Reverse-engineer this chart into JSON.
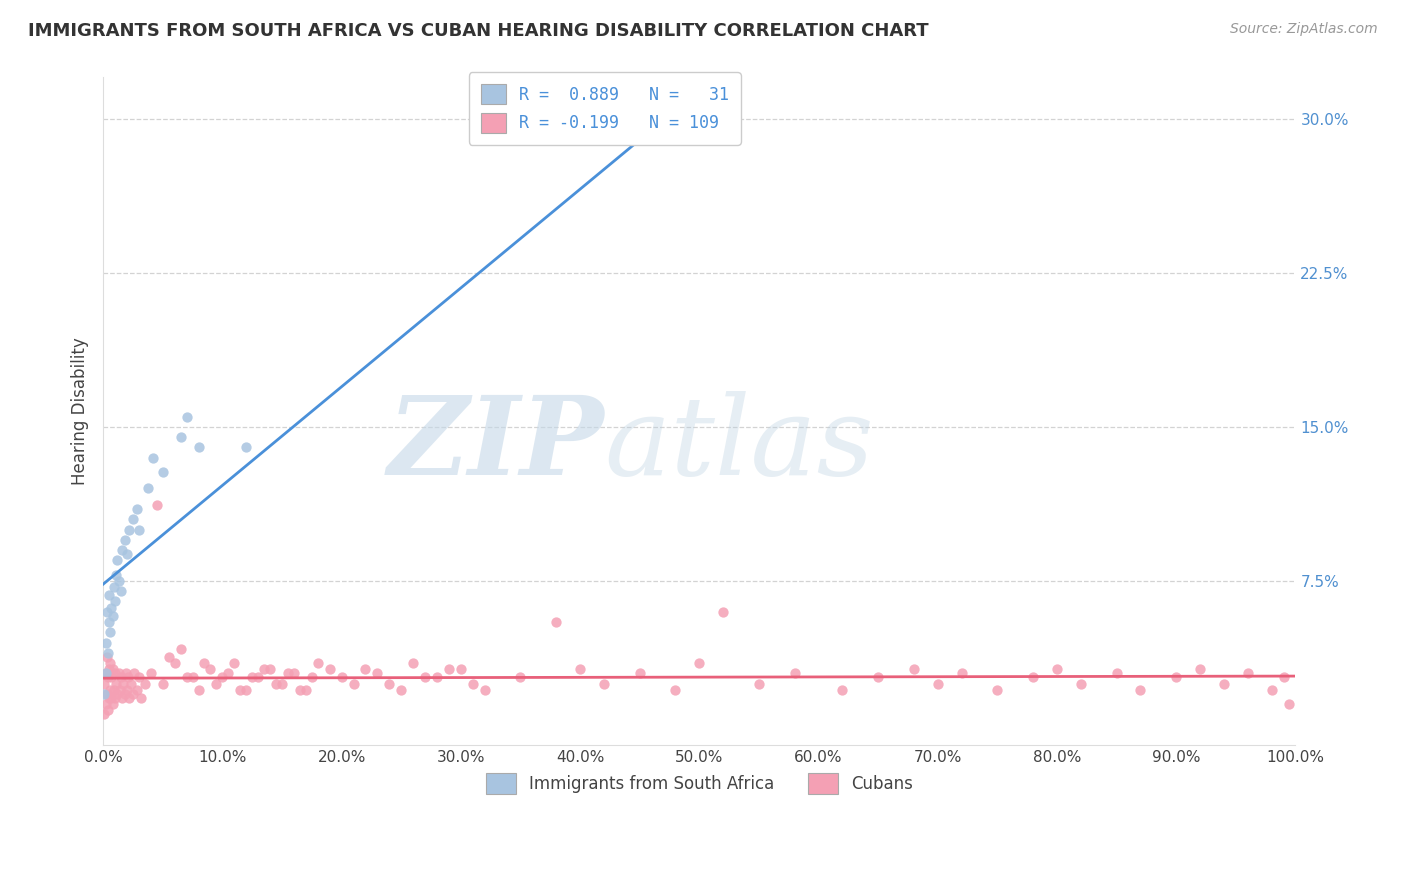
{
  "title": "IMMIGRANTS FROM SOUTH AFRICA VS CUBAN HEARING DISABILITY CORRELATION CHART",
  "source": "Source: ZipAtlas.com",
  "ylabel": "Hearing Disability",
  "xlim": [
    0.0,
    1.0
  ],
  "ylim": [
    -0.005,
    0.32
  ],
  "xtick_vals": [
    0.0,
    0.1,
    0.2,
    0.3,
    0.4,
    0.5,
    0.6,
    0.7,
    0.8,
    0.9,
    1.0
  ],
  "xticklabels": [
    "0.0%",
    "10.0%",
    "20.0%",
    "30.0%",
    "40.0%",
    "50.0%",
    "60.0%",
    "70.0%",
    "80.0%",
    "90.0%",
    "100.0%"
  ],
  "ytick_vals": [
    0.075,
    0.15,
    0.225,
    0.3
  ],
  "yticklabels": [
    "7.5%",
    "15.0%",
    "22.5%",
    "30.0%"
  ],
  "legend_labels": [
    "Immigrants from South Africa",
    "Cubans"
  ],
  "R_sa": 0.889,
  "N_sa": 31,
  "R_cu": -0.199,
  "N_cu": 109,
  "color_sa": "#a8c4e0",
  "color_cu": "#f4a0b4",
  "line_color_sa": "#4a90d9",
  "line_color_cu": "#e8607a",
  "ytick_color": "#5090d0",
  "background_color": "#ffffff",
  "grid_color": "#c8c8c8",
  "title_color": "#333333",
  "axis_color": "#444444",
  "sa_x": [
    0.001,
    0.002,
    0.002,
    0.003,
    0.004,
    0.005,
    0.005,
    0.006,
    0.007,
    0.008,
    0.009,
    0.01,
    0.011,
    0.012,
    0.013,
    0.015,
    0.016,
    0.018,
    0.02,
    0.022,
    0.025,
    0.028,
    0.03,
    0.038,
    0.042,
    0.05,
    0.065,
    0.07,
    0.08,
    0.12,
    0.52
  ],
  "sa_y": [
    0.02,
    0.03,
    0.045,
    0.06,
    0.04,
    0.055,
    0.068,
    0.05,
    0.062,
    0.058,
    0.072,
    0.065,
    0.078,
    0.085,
    0.075,
    0.07,
    0.09,
    0.095,
    0.088,
    0.1,
    0.105,
    0.11,
    0.1,
    0.12,
    0.135,
    0.128,
    0.145,
    0.155,
    0.14,
    0.14,
    0.295
  ],
  "cu_x_clust": [
    0.001,
    0.001,
    0.002,
    0.002,
    0.003,
    0.003,
    0.004,
    0.004,
    0.005,
    0.005,
    0.006,
    0.006,
    0.007,
    0.007,
    0.008,
    0.008,
    0.009,
    0.01,
    0.01,
    0.011,
    0.012,
    0.013,
    0.014,
    0.015,
    0.016,
    0.017,
    0.018,
    0.019,
    0.02,
    0.021,
    0.022,
    0.023,
    0.025,
    0.026,
    0.028,
    0.03,
    0.032,
    0.035
  ],
  "cu_y_clust": [
    0.01,
    0.025,
    0.015,
    0.03,
    0.02,
    0.038,
    0.012,
    0.028,
    0.018,
    0.032,
    0.022,
    0.035,
    0.018,
    0.028,
    0.015,
    0.032,
    0.022,
    0.018,
    0.03,
    0.025,
    0.02,
    0.03,
    0.022,
    0.028,
    0.018,
    0.025,
    0.02,
    0.03,
    0.022,
    0.028,
    0.018,
    0.025,
    0.02,
    0.03,
    0.022,
    0.028,
    0.018,
    0.025
  ],
  "cu_x_spread": [
    0.04,
    0.05,
    0.06,
    0.07,
    0.08,
    0.09,
    0.1,
    0.11,
    0.12,
    0.13,
    0.14,
    0.15,
    0.16,
    0.17,
    0.18,
    0.2,
    0.22,
    0.24,
    0.26,
    0.28,
    0.3,
    0.32,
    0.35,
    0.38,
    0.4,
    0.42,
    0.45,
    0.48,
    0.5,
    0.52,
    0.55,
    0.58,
    0.62,
    0.65,
    0.68,
    0.7,
    0.72,
    0.75,
    0.78,
    0.8,
    0.82,
    0.85,
    0.87,
    0.9,
    0.92,
    0.94,
    0.96,
    0.98,
    0.99,
    0.995,
    0.045,
    0.055,
    0.065,
    0.075,
    0.085,
    0.095,
    0.105,
    0.115,
    0.125,
    0.135,
    0.145,
    0.155,
    0.165,
    0.175,
    0.19,
    0.21,
    0.23,
    0.25,
    0.27,
    0.29,
    0.31
  ],
  "cu_y_spread": [
    0.03,
    0.025,
    0.035,
    0.028,
    0.022,
    0.032,
    0.028,
    0.035,
    0.022,
    0.028,
    0.032,
    0.025,
    0.03,
    0.022,
    0.035,
    0.028,
    0.032,
    0.025,
    0.035,
    0.028,
    0.032,
    0.022,
    0.028,
    0.055,
    0.032,
    0.025,
    0.03,
    0.022,
    0.035,
    0.06,
    0.025,
    0.03,
    0.022,
    0.028,
    0.032,
    0.025,
    0.03,
    0.022,
    0.028,
    0.032,
    0.025,
    0.03,
    0.022,
    0.028,
    0.032,
    0.025,
    0.03,
    0.022,
    0.028,
    0.015,
    0.112,
    0.038,
    0.042,
    0.028,
    0.035,
    0.025,
    0.03,
    0.022,
    0.028,
    0.032,
    0.025,
    0.03,
    0.022,
    0.028,
    0.032,
    0.025,
    0.03,
    0.022,
    0.028,
    0.032,
    0.025
  ]
}
